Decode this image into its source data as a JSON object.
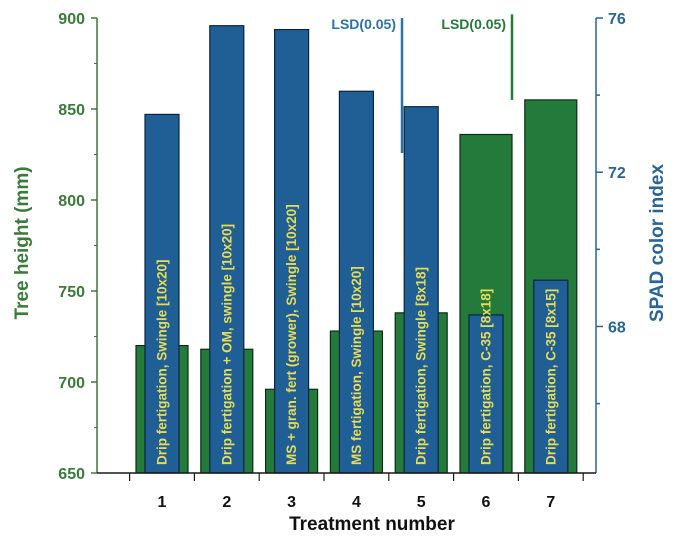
{
  "chart_data": {
    "type": "bar",
    "categories": [
      "1",
      "2",
      "3",
      "4",
      "5",
      "6",
      "7"
    ],
    "xlabel": "Treatment number",
    "y_left": {
      "label": "Tree height (mm)",
      "lim": [
        650,
        900
      ],
      "ticks": [
        650,
        700,
        750,
        800,
        850,
        900
      ],
      "color": "#3a7a3a"
    },
    "y_right": {
      "label": "SPAD color index",
      "lim": [
        64.2,
        76
      ],
      "ticks": [
        68,
        72,
        76
      ],
      "color": "#2a6496"
    },
    "series": [
      {
        "name": "Tree height",
        "axis": "left",
        "color": "#237a3a",
        "values": [
          720,
          718,
          696,
          728,
          738,
          836,
          855
        ]
      },
      {
        "name": "SPAD color index",
        "axis": "right",
        "color": "#1f5f96",
        "values": [
          73.5,
          75.8,
          75.7,
          74.1,
          73.7,
          68.3,
          69.2
        ]
      }
    ],
    "bar_labels": [
      "Drip fertigation, Swingle [10x20]",
      "Drip fertigation + OM, swingle [10x20]",
      "MS + gran. fert (grower), Swingle [10x20]",
      "MS fertigation, Swingle [10x20]",
      "Drip fertigation, Swingle [8x18]",
      "Drip fertigation, C-35 [8x18]",
      "Drip fertigation, C-35 [8x15]"
    ],
    "lsd": [
      {
        "label": "LSD(0.05)",
        "axis": "right",
        "from": 72.5,
        "to": 76,
        "color": "#2a73a8"
      },
      {
        "label": "LSD(0.05)",
        "axis": "left",
        "from": 855,
        "to": 902,
        "color": "#237a3a"
      }
    ]
  }
}
